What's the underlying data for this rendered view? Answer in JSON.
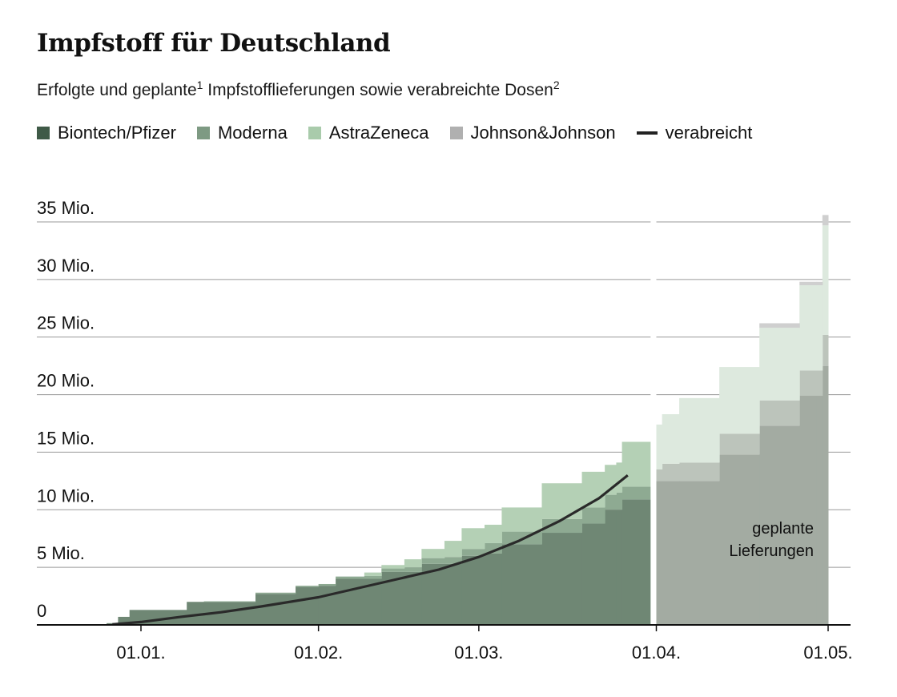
{
  "title": "Impfstoff für Deutschland",
  "subtitle": {
    "part1": "Erfolgte und geplante",
    "sup1": "1",
    "part2": " Impfstofflieferungen sowie verabreichte Dosen",
    "sup2": "2"
  },
  "colors": {
    "biontech": "#6f8774",
    "moderna": "#8eaa92",
    "astrazeneca": "#b4d0b5",
    "jj": "#b0b0b0",
    "planned_biontech": "#a3aba2",
    "planned_moderna": "#bcc4bb",
    "planned_astrazeneca": "#dde9de",
    "planned_jj": "#cfcfcf",
    "line": "#2a2a2a",
    "grid": "#9a9a9a",
    "axis": "#111111"
  },
  "chart_data": {
    "type": "area",
    "title": "",
    "xlabel": "",
    "ylabel": "",
    "ylim": [
      0,
      36
    ],
    "y_unit": "Mio.",
    "ytick_labels": [
      "0",
      "5 Mio.",
      "10 Mio.",
      "15 Mio.",
      "20 Mio.",
      "25 Mio.",
      "30 Mio.",
      "35 Mio."
    ],
    "yticks": [
      0,
      5,
      10,
      15,
      20,
      25,
      30,
      35
    ],
    "x_range": [
      "2020-12-20",
      "2021-05-05"
    ],
    "xtick_labels": [
      "01.01.",
      "01.02.",
      "01.03.",
      "01.04.",
      "01.05."
    ],
    "xticks": [
      "2021-01-01",
      "2021-02-01",
      "2021-03-01",
      "2021-04-01",
      "2021-05-01"
    ],
    "grid": true,
    "legend_position": "top-left",
    "legend": [
      {
        "key": "biontech",
        "label": "Biontech/Pfizer"
      },
      {
        "key": "moderna",
        "label": "Moderna"
      },
      {
        "key": "astrazeneca",
        "label": "AstraZeneca"
      },
      {
        "key": "jj",
        "label": "Johnson&Johnson"
      },
      {
        "key": "line",
        "label": "verabreicht"
      }
    ],
    "annotation": {
      "line1": "geplante",
      "line2": "Lieferungen"
    },
    "deliveries": [
      {
        "date": "2020-12-26",
        "biontech": 0.15,
        "moderna": 0,
        "astrazeneca": 0,
        "jj": 0
      },
      {
        "date": "2020-12-28",
        "biontech": 0.7,
        "moderna": 0,
        "astrazeneca": 0,
        "jj": 0
      },
      {
        "date": "2020-12-30",
        "biontech": 1.3,
        "moderna": 0,
        "astrazeneca": 0,
        "jj": 0
      },
      {
        "date": "2021-01-09",
        "biontech": 2.0,
        "moderna": 0,
        "astrazeneca": 0,
        "jj": 0
      },
      {
        "date": "2021-01-12",
        "biontech": 2.0,
        "moderna": 0.05,
        "astrazeneca": 0,
        "jj": 0
      },
      {
        "date": "2021-01-21",
        "biontech": 2.7,
        "moderna": 0.1,
        "astrazeneca": 0,
        "jj": 0
      },
      {
        "date": "2021-01-28",
        "biontech": 3.3,
        "moderna": 0.1,
        "astrazeneca": 0,
        "jj": 0
      },
      {
        "date": "2021-02-01",
        "biontech": 3.4,
        "moderna": 0.15,
        "astrazeneca": 0,
        "jj": 0
      },
      {
        "date": "2021-02-04",
        "biontech": 4.0,
        "moderna": 0.2,
        "astrazeneca": 0,
        "jj": 0
      },
      {
        "date": "2021-02-09",
        "biontech": 4.0,
        "moderna": 0.25,
        "astrazeneca": 0.3,
        "jj": 0
      },
      {
        "date": "2021-02-12",
        "biontech": 4.6,
        "moderna": 0.3,
        "astrazeneca": 0.3,
        "jj": 0
      },
      {
        "date": "2021-02-16",
        "biontech": 4.6,
        "moderna": 0.4,
        "astrazeneca": 0.7,
        "jj": 0
      },
      {
        "date": "2021-02-19",
        "biontech": 5.3,
        "moderna": 0.5,
        "astrazeneca": 0.8,
        "jj": 0
      },
      {
        "date": "2021-02-23",
        "biontech": 5.3,
        "moderna": 0.6,
        "astrazeneca": 1.4,
        "jj": 0
      },
      {
        "date": "2021-02-26",
        "biontech": 6.0,
        "moderna": 0.6,
        "astrazeneca": 1.8,
        "jj": 0
      },
      {
        "date": "2021-03-02",
        "biontech": 6.2,
        "moderna": 0.9,
        "astrazeneca": 1.6,
        "jj": 0
      },
      {
        "date": "2021-03-05",
        "biontech": 7.0,
        "moderna": 1.1,
        "astrazeneca": 2.1,
        "jj": 0
      },
      {
        "date": "2021-03-12",
        "biontech": 8.0,
        "moderna": 1.2,
        "astrazeneca": 3.1,
        "jj": 0
      },
      {
        "date": "2021-03-19",
        "biontech": 8.8,
        "moderna": 1.4,
        "astrazeneca": 3.1,
        "jj": 0
      },
      {
        "date": "2021-03-23",
        "biontech": 10.0,
        "moderna": 1.3,
        "astrazeneca": 2.6,
        "jj": 0
      },
      {
        "date": "2021-03-25",
        "biontech": 10.0,
        "moderna": 1.5,
        "astrazeneca": 2.6,
        "jj": 0
      },
      {
        "date": "2021-03-26",
        "biontech": 10.9,
        "moderna": 1.1,
        "astrazeneca": 3.9,
        "jj": 0
      }
    ],
    "planned_start": "2021-04-01",
    "planned": [
      {
        "date": "2021-04-01",
        "biontech": 12.5,
        "moderna": 1.0,
        "astrazeneca": 3.9,
        "jj": 0
      },
      {
        "date": "2021-04-02",
        "biontech": 12.5,
        "moderna": 1.5,
        "astrazeneca": 4.3,
        "jj": 0
      },
      {
        "date": "2021-04-05",
        "biontech": 12.5,
        "moderna": 1.6,
        "astrazeneca": 5.6,
        "jj": 0
      },
      {
        "date": "2021-04-12",
        "biontech": 14.8,
        "moderna": 1.8,
        "astrazeneca": 5.8,
        "jj": 0
      },
      {
        "date": "2021-04-19",
        "biontech": 17.3,
        "moderna": 2.2,
        "astrazeneca": 6.3,
        "jj": 0.4
      },
      {
        "date": "2021-04-26",
        "biontech": 19.9,
        "moderna": 2.2,
        "astrazeneca": 7.4,
        "jj": 0.3
      },
      {
        "date": "2021-04-29",
        "biontech": 19.9,
        "moderna": 2.2,
        "astrazeneca": 7.4,
        "jj": 0.3
      },
      {
        "date": "2021-04-30",
        "biontech": 22.5,
        "moderna": 2.7,
        "astrazeneca": 9.5,
        "jj": 0.9
      }
    ],
    "administered": {
      "name": "verabreicht",
      "x": [
        "2020-12-27",
        "2021-01-01",
        "2021-01-08",
        "2021-01-15",
        "2021-01-22",
        "2021-02-01",
        "2021-02-08",
        "2021-02-15",
        "2021-02-22",
        "2021-03-01",
        "2021-03-08",
        "2021-03-15",
        "2021-03-22",
        "2021-03-27"
      ],
      "values": [
        0.05,
        0.25,
        0.7,
        1.1,
        1.6,
        2.4,
        3.2,
        4.0,
        4.8,
        5.9,
        7.3,
        9.0,
        11.0,
        13.0
      ]
    }
  }
}
